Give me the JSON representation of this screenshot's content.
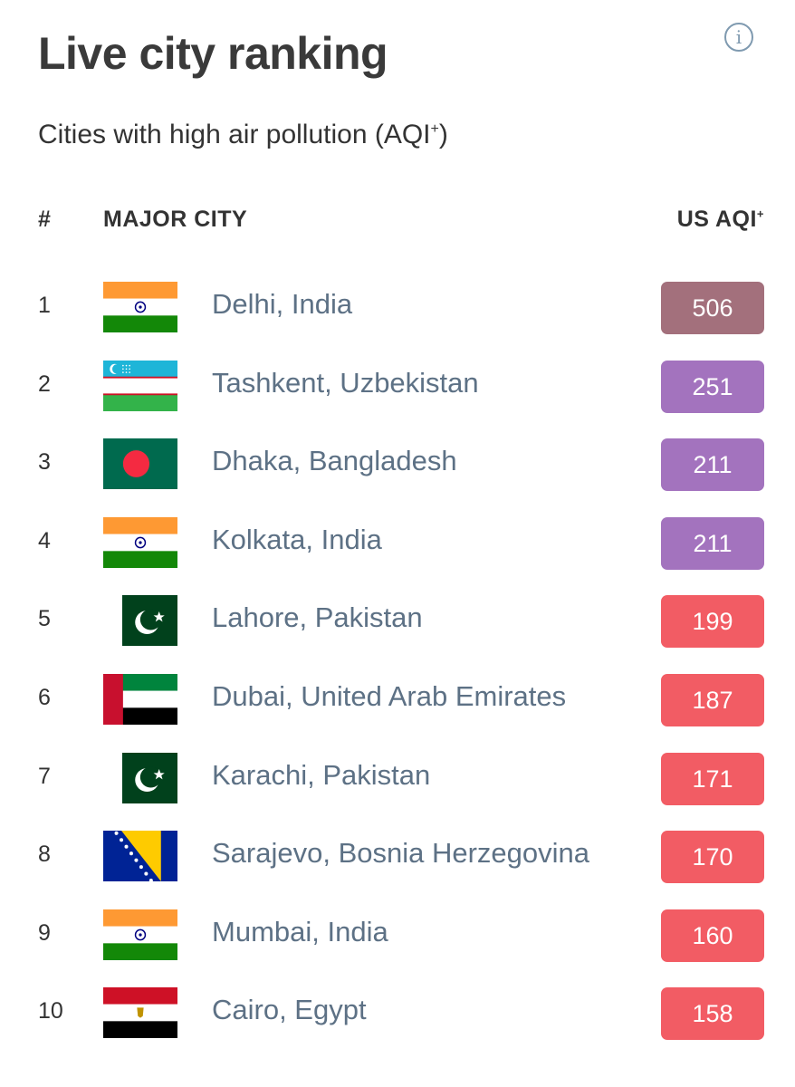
{
  "header": {
    "title": "Live city ranking",
    "subtitle": "Cities with high air pollution (AQI",
    "subtitle_sup": "+",
    "subtitle_end": ")",
    "info_icon": "i"
  },
  "columns": {
    "rank": "#",
    "city": "MAJOR CITY",
    "aqi": "US AQI",
    "aqi_sup": "+"
  },
  "colors": {
    "hazardous": "#a3707c",
    "very_unhealthy": "#a373be",
    "unhealthy": "#f25c64"
  },
  "rows": [
    {
      "rank": "1",
      "city": "Delhi, India",
      "aqi": "506",
      "flag": "india-flag-icon",
      "level": "hazardous"
    },
    {
      "rank": "2",
      "city": "Tashkent, Uzbekistan",
      "aqi": "251",
      "flag": "uzbekistan-flag-icon",
      "level": "very_unhealthy"
    },
    {
      "rank": "3",
      "city": "Dhaka, Bangladesh",
      "aqi": "211",
      "flag": "bangladesh-flag-icon",
      "level": "very_unhealthy"
    },
    {
      "rank": "4",
      "city": "Kolkata, India",
      "aqi": "211",
      "flag": "india-flag-icon",
      "level": "very_unhealthy"
    },
    {
      "rank": "5",
      "city": "Lahore, Pakistan",
      "aqi": "199",
      "flag": "pakistan-flag-icon",
      "level": "unhealthy"
    },
    {
      "rank": "6",
      "city": "Dubai, United Arab Emirates",
      "aqi": "187",
      "flag": "uae-flag-icon",
      "level": "unhealthy"
    },
    {
      "rank": "7",
      "city": "Karachi, Pakistan",
      "aqi": "171",
      "flag": "pakistan-flag-icon",
      "level": "unhealthy"
    },
    {
      "rank": "8",
      "city": "Sarajevo, Bosnia Herzegovina",
      "aqi": "170",
      "flag": "bosnia-flag-icon",
      "level": "unhealthy"
    },
    {
      "rank": "9",
      "city": "Mumbai, India",
      "aqi": "160",
      "flag": "india-flag-icon",
      "level": "unhealthy"
    },
    {
      "rank": "10",
      "city": "Cairo, Egypt",
      "aqi": "158",
      "flag": "egypt-flag-icon",
      "level": "unhealthy"
    }
  ]
}
